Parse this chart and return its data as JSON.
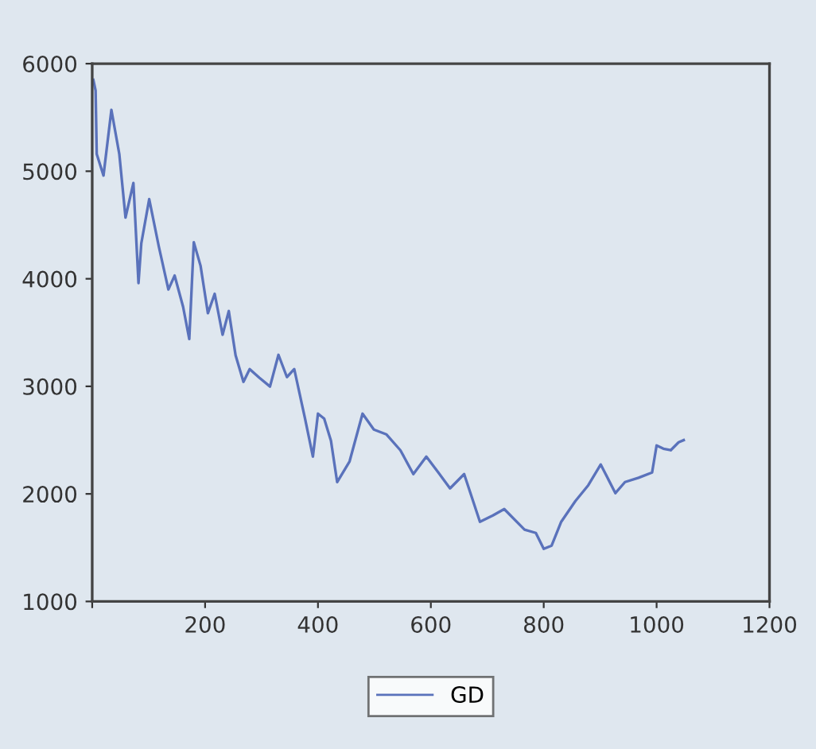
{
  "chart_data": {
    "type": "line",
    "xlim": [
      0,
      1200
    ],
    "ylim": [
      1000,
      6000
    ],
    "xticks": [
      {
        "value": 0,
        "label": null
      },
      200,
      400,
      600,
      800,
      1000,
      1200
    ],
    "yticks": [
      1000,
      2000,
      3000,
      4000,
      5000,
      6000
    ],
    "grid": false,
    "legend": "bottom",
    "marker": "none",
    "line_style": "solid",
    "series": [
      {
        "name": "GD",
        "color": "#5a72bb",
        "x": [
          2,
          6,
          8,
          20,
          34,
          48,
          59,
          73,
          82,
          87,
          101,
          118,
          135,
          146,
          161,
          172,
          180,
          192,
          205,
          217,
          231,
          242,
          254,
          268,
          279,
          296,
          315,
          330,
          345,
          358,
          377,
          391,
          400,
          411,
          423,
          434,
          456,
          479,
          499,
          521,
          546,
          569,
          592,
          613,
          634,
          659,
          687,
          710,
          730,
          766,
          786,
          800,
          814,
          831,
          856,
          879,
          901,
          927,
          944,
          968,
          992,
          1000,
          1012,
          1025,
          1039,
          1048
        ],
        "values": [
          5850,
          5750,
          5160,
          4960,
          5570,
          5160,
          4570,
          4890,
          3960,
          4330,
          4740,
          4300,
          3900,
          4030,
          3740,
          3440,
          4340,
          4120,
          3680,
          3860,
          3480,
          3700,
          3290,
          3042,
          3160,
          3080,
          2998,
          3293,
          3086,
          3160,
          2702,
          2347,
          2746,
          2700,
          2495,
          2110,
          2302,
          2746,
          2598,
          2554,
          2406,
          2184,
          2347,
          2200,
          2051,
          2184,
          1741,
          1800,
          1859,
          1667,
          1637,
          1489,
          1519,
          1741,
          1933,
          2081,
          2273,
          2007,
          2110,
          2150,
          2199,
          2450,
          2420,
          2406,
          2480,
          2500
        ]
      }
    ]
  }
}
